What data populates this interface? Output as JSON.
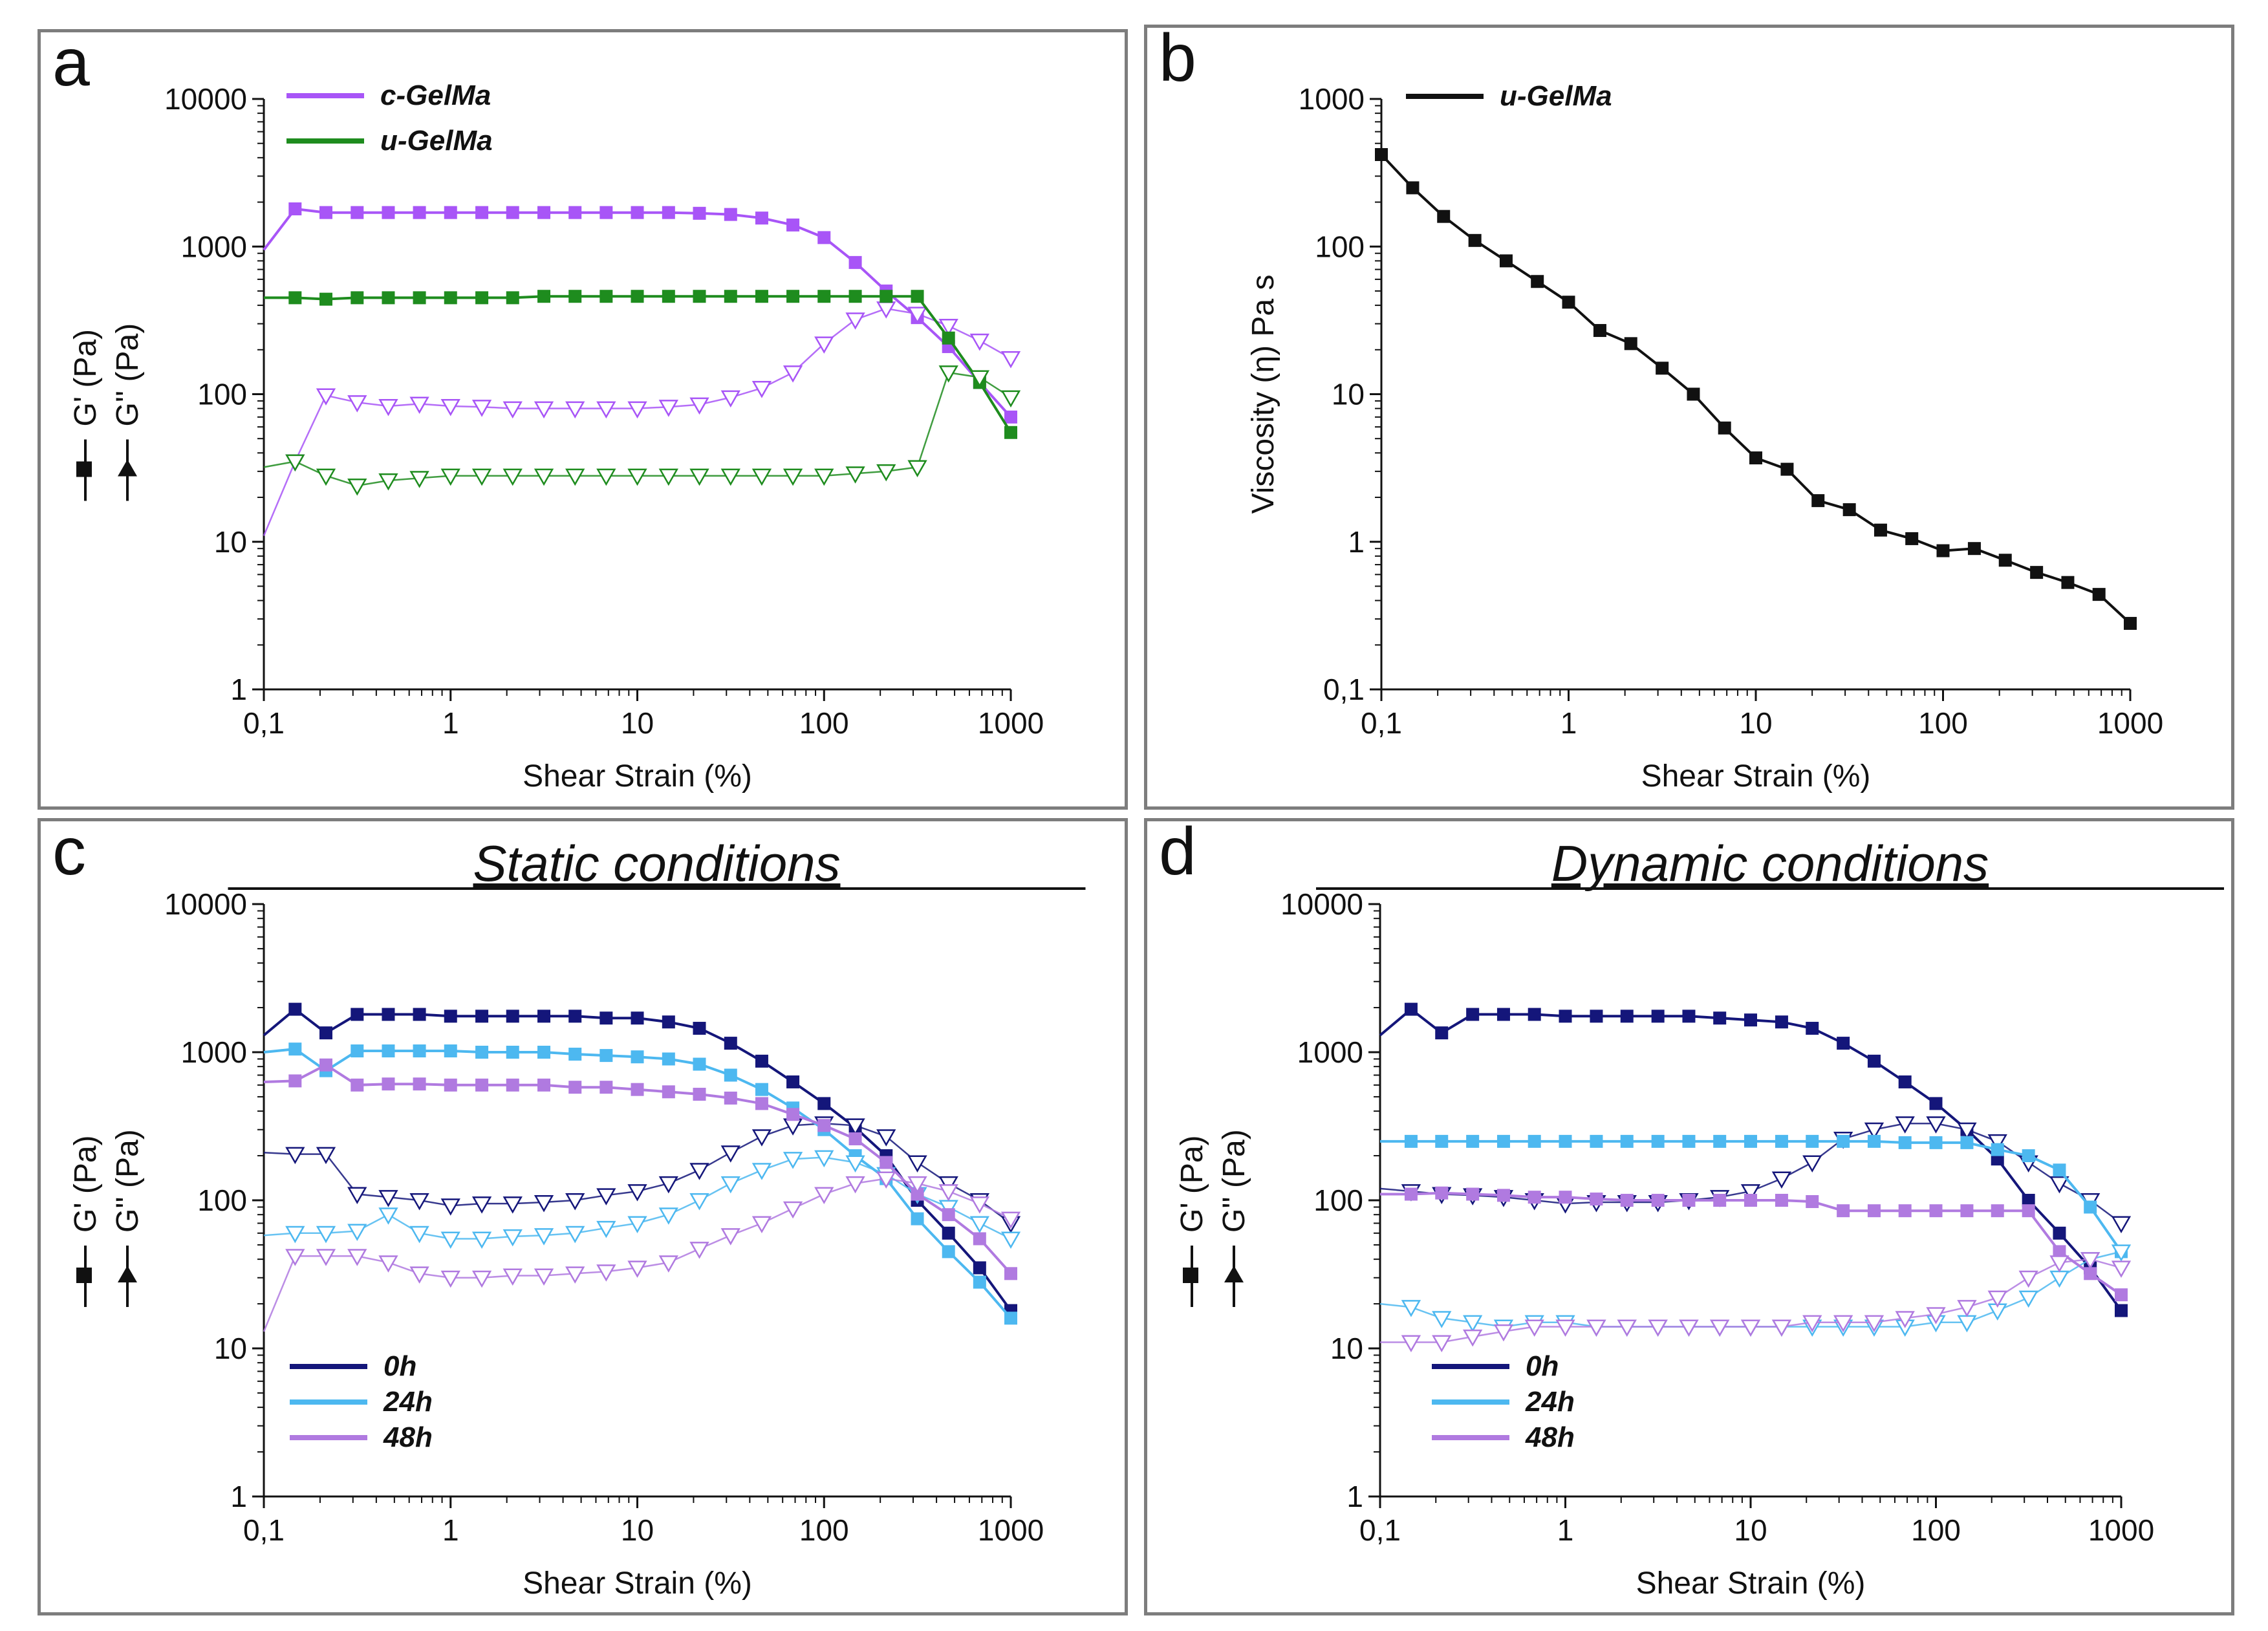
{
  "chart_data": [
    {
      "type": "line",
      "panel_letter": "a",
      "title": "",
      "xlabel": "Shear Strain (%)",
      "ylabel_storage": "G' (Pa)",
      "ylabel_loss": "G'' (Pa)",
      "xscale": "log",
      "yscale": "log",
      "xlim": [
        0.1,
        1000
      ],
      "ylim": [
        1,
        10000
      ],
      "xticks": [
        0.1,
        1,
        10,
        100,
        1000
      ],
      "xtick_labels": [
        "0,1",
        "1",
        "10",
        "100",
        "1000"
      ],
      "yticks": [
        1,
        10,
        100,
        1000,
        10000
      ],
      "ytick_labels": [
        "1",
        "10",
        "100",
        "1000",
        "10000"
      ],
      "legend": [
        {
          "name": "c-GelMa",
          "color": "#a855f7"
        },
        {
          "name": "u-GelMa",
          "color": "#1e8c1e"
        }
      ],
      "legend_position": "top-left",
      "x": [
        0.1,
        0.147,
        0.215,
        0.316,
        0.464,
        0.681,
        1,
        1.47,
        2.15,
        3.16,
        4.64,
        6.81,
        10,
        14.7,
        21.5,
        31.6,
        46.4,
        68.1,
        100,
        147,
        215,
        316,
        464,
        681,
        1000
      ],
      "series": [
        {
          "name": "c-GelMa G'",
          "legend": "c-GelMa",
          "kind": "storage",
          "color": "#a855f7",
          "values": [
            950,
            1800,
            1700,
            1700,
            1700,
            1700,
            1700,
            1700,
            1700,
            1700,
            1700,
            1700,
            1700,
            1700,
            1680,
            1650,
            1560,
            1400,
            1150,
            780,
            500,
            330,
            210,
            120,
            70
          ]
        },
        {
          "name": "c-GelMa G''",
          "legend": "c-GelMa",
          "kind": "loss",
          "color": "#a855f7",
          "values": [
            11,
            35,
            98,
            88,
            83,
            86,
            83,
            82,
            80,
            80,
            80,
            80,
            80,
            82,
            85,
            95,
            110,
            140,
            220,
            320,
            380,
            350,
            290,
            230,
            175
          ]
        },
        {
          "name": "u-GelMa G'",
          "legend": "u-GelMa",
          "kind": "storage",
          "color": "#1e8c1e",
          "values": [
            450,
            450,
            440,
            450,
            450,
            450,
            450,
            450,
            450,
            460,
            460,
            460,
            460,
            460,
            460,
            460,
            460,
            460,
            460,
            460,
            460,
            460,
            240,
            120,
            55
          ]
        },
        {
          "name": "u-GelMa G''",
          "legend": "u-GelMa",
          "kind": "loss",
          "color": "#1e8c1e",
          "values": [
            32,
            35,
            28,
            24,
            26,
            27,
            28,
            28,
            28,
            28,
            28,
            28,
            28,
            28,
            28,
            28,
            28,
            28,
            28,
            29,
            30,
            32,
            140,
            130,
            95
          ]
        }
      ]
    },
    {
      "type": "line",
      "panel_letter": "b",
      "title": "",
      "xlabel": "Shear Strain (%)",
      "ylabel": "Viscosity (η) Pa s",
      "xscale": "log",
      "yscale": "log",
      "xlim": [
        0.1,
        1000
      ],
      "ylim": [
        0.1,
        1000
      ],
      "xticks": [
        0.1,
        1,
        10,
        100,
        1000
      ],
      "xtick_labels": [
        "0,1",
        "1",
        "10",
        "100",
        "1000"
      ],
      "yticks": [
        0.1,
        1,
        10,
        100,
        1000
      ],
      "ytick_labels": [
        "0,1",
        "1",
        "10",
        "100",
        "1000"
      ],
      "legend": [
        {
          "name": "u-GelMa",
          "color": "#111111"
        }
      ],
      "legend_position": "top-left",
      "x": [
        0.1,
        0.147,
        0.215,
        0.316,
        0.464,
        0.681,
        1,
        1.47,
        2.15,
        3.16,
        4.64,
        6.81,
        10,
        14.7,
        21.5,
        31.6,
        46.4,
        68.1,
        100,
        147,
        215,
        316,
        464,
        681,
        1000
      ],
      "series": [
        {
          "name": "u-GelMa viscosity",
          "legend": "u-GelMa",
          "kind": "storage",
          "color": "#111111",
          "values": [
            420,
            250,
            160,
            110,
            80,
            58,
            42,
            27,
            22,
            15,
            10,
            5.9,
            3.7,
            3.1,
            1.9,
            1.65,
            1.2,
            1.05,
            0.87,
            0.9,
            0.75,
            0.62,
            0.53,
            0.44,
            0.28
          ]
        }
      ]
    },
    {
      "type": "line",
      "panel_letter": "c",
      "title": "Static conditions",
      "xlabel": "Shear Strain (%)",
      "ylabel_storage": "G' (Pa)",
      "ylabel_loss": "G'' (Pa)",
      "xscale": "log",
      "yscale": "log",
      "xlim": [
        0.1,
        1000
      ],
      "ylim": [
        1,
        10000
      ],
      "xticks": [
        0.1,
        1,
        10,
        100,
        1000
      ],
      "xtick_labels": [
        "0,1",
        "1",
        "10",
        "100",
        "1000"
      ],
      "yticks": [
        1,
        10,
        100,
        1000,
        10000
      ],
      "ytick_labels": [
        "1",
        "10",
        "100",
        "1000",
        "10000"
      ],
      "legend": [
        {
          "name": "0h",
          "color": "#14167a"
        },
        {
          "name": "24h",
          "color": "#4db8f0"
        },
        {
          "name": "48h",
          "color": "#b07ae0"
        }
      ],
      "legend_position": "bottom-left",
      "x": [
        0.1,
        0.147,
        0.215,
        0.316,
        0.464,
        0.681,
        1,
        1.47,
        2.15,
        3.16,
        4.64,
        6.81,
        10,
        14.7,
        21.5,
        31.6,
        46.4,
        68.1,
        100,
        147,
        215,
        316,
        464,
        681,
        1000
      ],
      "series": [
        {
          "name": "0h G'",
          "legend": "0h",
          "kind": "storage",
          "color": "#14167a",
          "values": [
            1300,
            1950,
            1350,
            1800,
            1800,
            1800,
            1750,
            1750,
            1750,
            1750,
            1750,
            1700,
            1700,
            1600,
            1450,
            1150,
            870,
            630,
            450,
            310,
            200,
            100,
            60,
            35,
            18
          ]
        },
        {
          "name": "0h G''",
          "legend": "0h",
          "kind": "loss",
          "color": "#14167a",
          "values": [
            210,
            205,
            205,
            110,
            105,
            100,
            92,
            95,
            95,
            97,
            100,
            108,
            115,
            130,
            160,
            210,
            270,
            320,
            330,
            320,
            270,
            180,
            130,
            100,
            70
          ]
        },
        {
          "name": "24h G'",
          "legend": "24h",
          "kind": "storage",
          "color": "#4db8f0",
          "values": [
            1000,
            1050,
            750,
            1020,
            1020,
            1020,
            1020,
            1000,
            1000,
            1000,
            970,
            950,
            930,
            900,
            830,
            700,
            560,
            420,
            300,
            200,
            140,
            75,
            45,
            28,
            16
          ]
        },
        {
          "name": "24h G''",
          "legend": "24h",
          "kind": "loss",
          "color": "#4db8f0",
          "values": [
            58,
            60,
            60,
            62,
            80,
            60,
            55,
            55,
            57,
            58,
            60,
            65,
            70,
            80,
            100,
            130,
            160,
            190,
            195,
            180,
            150,
            110,
            90,
            70,
            55
          ]
        },
        {
          "name": "48h G'",
          "legend": "48h",
          "kind": "storage",
          "color": "#b07ae0",
          "values": [
            630,
            640,
            820,
            600,
            610,
            610,
            600,
            600,
            600,
            600,
            580,
            580,
            560,
            540,
            520,
            490,
            450,
            380,
            320,
            260,
            180,
            110,
            80,
            55,
            32
          ]
        },
        {
          "name": "48h G''",
          "legend": "48h",
          "kind": "loss",
          "color": "#b07ae0",
          "values": [
            13,
            42,
            42,
            42,
            38,
            32,
            30,
            30,
            31,
            31,
            32,
            33,
            35,
            38,
            47,
            58,
            70,
            88,
            110,
            130,
            140,
            130,
            115,
            95,
            75
          ]
        }
      ]
    },
    {
      "type": "line",
      "panel_letter": "d",
      "title": "Dynamic conditions",
      "xlabel": "Shear Strain (%)",
      "ylabel_storage": "G' (Pa)",
      "ylabel_loss": "G'' (Pa)",
      "xscale": "log",
      "yscale": "log",
      "xlim": [
        0.1,
        1000
      ],
      "ylim": [
        1,
        10000
      ],
      "xticks": [
        0.1,
        1,
        10,
        100,
        1000
      ],
      "xtick_labels": [
        "0,1",
        "1",
        "10",
        "100",
        "1000"
      ],
      "yticks": [
        1,
        10,
        100,
        1000,
        10000
      ],
      "ytick_labels": [
        "1",
        "10",
        "100",
        "1000",
        "10000"
      ],
      "legend": [
        {
          "name": "0h",
          "color": "#14167a"
        },
        {
          "name": "24h",
          "color": "#4db8f0"
        },
        {
          "name": "48h",
          "color": "#b07ae0"
        }
      ],
      "legend_position": "bottom-left",
      "x": [
        0.1,
        0.147,
        0.215,
        0.316,
        0.464,
        0.681,
        1,
        1.47,
        2.15,
        3.16,
        4.64,
        6.81,
        10,
        14.7,
        21.5,
        31.6,
        46.4,
        68.1,
        100,
        147,
        215,
        316,
        464,
        681,
        1000
      ],
      "series": [
        {
          "name": "0h G'",
          "legend": "0h",
          "kind": "storage",
          "color": "#14167a",
          "values": [
            1300,
            1950,
            1350,
            1800,
            1800,
            1800,
            1750,
            1750,
            1750,
            1750,
            1750,
            1700,
            1650,
            1600,
            1450,
            1150,
            870,
            630,
            450,
            300,
            190,
            100,
            60,
            35,
            18
          ]
        },
        {
          "name": "0h G''",
          "legend": "0h",
          "kind": "loss",
          "color": "#14167a",
          "values": [
            120,
            115,
            110,
            108,
            105,
            100,
            95,
            97,
            97,
            97,
            100,
            105,
            115,
            140,
            180,
            260,
            300,
            330,
            330,
            300,
            250,
            180,
            130,
            100,
            70
          ]
        },
        {
          "name": "24h G'",
          "legend": "24h",
          "kind": "storage",
          "color": "#4db8f0",
          "values": [
            250,
            250,
            250,
            250,
            250,
            250,
            250,
            250,
            250,
            250,
            250,
            250,
            250,
            250,
            250,
            250,
            250,
            245,
            245,
            245,
            220,
            200,
            160,
            90,
            45
          ]
        },
        {
          "name": "24h G''",
          "legend": "24h",
          "kind": "loss",
          "color": "#4db8f0",
          "values": [
            20,
            19,
            16,
            15,
            14,
            15,
            15,
            14,
            14,
            14,
            14,
            14,
            14,
            14,
            14,
            14,
            14,
            14,
            15,
            15,
            18,
            22,
            30,
            40,
            45
          ]
        },
        {
          "name": "48h G'",
          "legend": "48h",
          "kind": "storage",
          "color": "#b07ae0",
          "values": [
            110,
            110,
            112,
            110,
            108,
            105,
            105,
            102,
            100,
            100,
            100,
            100,
            100,
            100,
            98,
            85,
            85,
            85,
            85,
            85,
            85,
            85,
            45,
            32,
            23
          ]
        },
        {
          "name": "48h G''",
          "legend": "48h",
          "kind": "loss",
          "color": "#b07ae0",
          "values": [
            11,
            11,
            11,
            12,
            13,
            14,
            14,
            14,
            14,
            14,
            14,
            14,
            14,
            14,
            15,
            15,
            15,
            16,
            17,
            19,
            22,
            30,
            38,
            40,
            35
          ]
        }
      ]
    }
  ]
}
